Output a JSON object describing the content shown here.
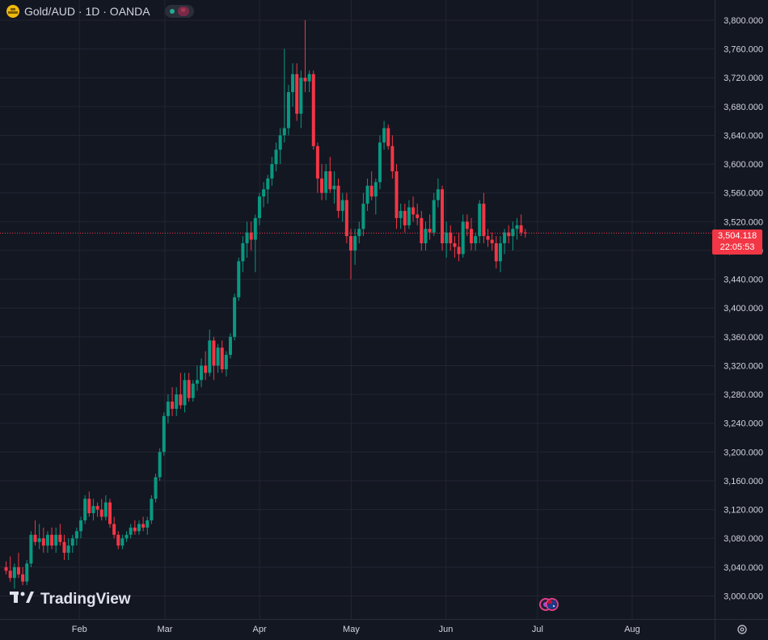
{
  "header": {
    "symbol": "Gold/AUD · 1D · OANDA",
    "symbol_icon": "gold-bars-icon",
    "market_status_icon": "market-open-dot-icon",
    "badge_icon": "equals-badge-icon"
  },
  "watermark": {
    "text": "TradingView",
    "logo_icon": "tradingview-logo-icon"
  },
  "last_price": {
    "price": "3,504.118",
    "countdown": "22:05:53",
    "color": "#f23645"
  },
  "colors": {
    "background": "#131722",
    "grid": "#232632",
    "up": "#089981",
    "down": "#f23645",
    "axis_text": "#d1d4dc"
  },
  "event_icons": [
    "economic-event-icon",
    "australia-flag-icon"
  ],
  "settings_icon": "settings-gear-icon",
  "chart_data": {
    "type": "candlestick",
    "title": "Gold/AUD · 1D · OANDA",
    "y_axis": {
      "ticks": [
        "3,000.000",
        "3,040.000",
        "3,080.000",
        "3,120.000",
        "3,160.000",
        "3,200.000",
        "3,240.000",
        "3,280.000",
        "3,320.000",
        "3,360.000",
        "3,400.000",
        "3,440.000",
        "3,480.000",
        "3,520.000",
        "3,560.000",
        "3,600.000",
        "3,640.000",
        "3,680.000",
        "3,720.000",
        "3,760.000",
        "3,800.000"
      ],
      "tick_values": [
        3000,
        3040,
        3080,
        3120,
        3160,
        3200,
        3240,
        3280,
        3320,
        3360,
        3400,
        3440,
        3480,
        3520,
        3560,
        3600,
        3640,
        3680,
        3720,
        3760,
        3800
      ],
      "range": [
        2968,
        3828
      ],
      "position": "right"
    },
    "x_axis": {
      "labels": [
        "Feb",
        "Mar",
        "Apr",
        "May",
        "Jun",
        "Jul",
        "Aug"
      ],
      "label_days": [
        26,
        54,
        85,
        115,
        146,
        176,
        207
      ],
      "range_days": [
        0,
        234
      ]
    },
    "last_price": 3504.118,
    "grid": true,
    "candles": [
      [
        3040,
        3048,
        3030,
        3035
      ],
      [
        3035,
        3055,
        3020,
        3025
      ],
      [
        3025,
        3045,
        3010,
        3040
      ],
      [
        3040,
        3060,
        3025,
        3030
      ],
      [
        3030,
        3040,
        3015,
        3020
      ],
      [
        3020,
        3050,
        3015,
        3045
      ],
      [
        3045,
        3090,
        3040,
        3085
      ],
      [
        3085,
        3105,
        3070,
        3075
      ],
      [
        3075,
        3100,
        3065,
        3080
      ],
      [
        3080,
        3095,
        3060,
        3070
      ],
      [
        3070,
        3090,
        3060,
        3085
      ],
      [
        3085,
        3095,
        3065,
        3070
      ],
      [
        3070,
        3095,
        3060,
        3085
      ],
      [
        3085,
        3100,
        3070,
        3075
      ],
      [
        3075,
        3085,
        3050,
        3060
      ],
      [
        3060,
        3080,
        3050,
        3070
      ],
      [
        3070,
        3085,
        3060,
        3080
      ],
      [
        3080,
        3095,
        3070,
        3090
      ],
      [
        3090,
        3110,
        3080,
        3105
      ],
      [
        3105,
        3140,
        3100,
        3135
      ],
      [
        3135,
        3145,
        3110,
        3115
      ],
      [
        3115,
        3135,
        3105,
        3125
      ],
      [
        3125,
        3130,
        3110,
        3120
      ],
      [
        3120,
        3135,
        3105,
        3110
      ],
      [
        3110,
        3140,
        3105,
        3130
      ],
      [
        3130,
        3135,
        3095,
        3100
      ],
      [
        3100,
        3110,
        3080,
        3085
      ],
      [
        3085,
        3090,
        3065,
        3070
      ],
      [
        3070,
        3085,
        3065,
        3080
      ],
      [
        3080,
        3090,
        3075,
        3085
      ],
      [
        3085,
        3100,
        3080,
        3095
      ],
      [
        3095,
        3105,
        3085,
        3090
      ],
      [
        3090,
        3105,
        3085,
        3100
      ],
      [
        3100,
        3110,
        3090,
        3095
      ],
      [
        3095,
        3110,
        3085,
        3105
      ],
      [
        3105,
        3140,
        3100,
        3135
      ],
      [
        3135,
        3170,
        3130,
        3165
      ],
      [
        3165,
        3205,
        3160,
        3200
      ],
      [
        3200,
        3255,
        3195,
        3250
      ],
      [
        3250,
        3280,
        3240,
        3270
      ],
      [
        3270,
        3290,
        3250,
        3260
      ],
      [
        3260,
        3290,
        3250,
        3280
      ],
      [
        3280,
        3310,
        3260,
        3265
      ],
      [
        3265,
        3310,
        3255,
        3300
      ],
      [
        3300,
        3310,
        3270,
        3275
      ],
      [
        3275,
        3300,
        3270,
        3295
      ],
      [
        3295,
        3320,
        3285,
        3300
      ],
      [
        3300,
        3330,
        3290,
        3320
      ],
      [
        3320,
        3340,
        3300,
        3310
      ],
      [
        3310,
        3370,
        3305,
        3355
      ],
      [
        3355,
        3360,
        3300,
        3320
      ],
      [
        3320,
        3350,
        3310,
        3345
      ],
      [
        3345,
        3355,
        3310,
        3315
      ],
      [
        3315,
        3340,
        3305,
        3335
      ],
      [
        3335,
        3365,
        3330,
        3360
      ],
      [
        3360,
        3420,
        3355,
        3415
      ],
      [
        3415,
        3470,
        3410,
        3465
      ],
      [
        3465,
        3500,
        3450,
        3490
      ],
      [
        3490,
        3520,
        3470,
        3505
      ],
      [
        3505,
        3520,
        3480,
        3495
      ],
      [
        3495,
        3530,
        3450,
        3525
      ],
      [
        3525,
        3560,
        3515,
        3555
      ],
      [
        3555,
        3575,
        3540,
        3565
      ],
      [
        3565,
        3585,
        3545,
        3580
      ],
      [
        3580,
        3610,
        3570,
        3600
      ],
      [
        3600,
        3630,
        3590,
        3620
      ],
      [
        3620,
        3650,
        3600,
        3640
      ],
      [
        3640,
        3760,
        3630,
        3650
      ],
      [
        3650,
        3710,
        3640,
        3700
      ],
      [
        3700,
        3740,
        3680,
        3725
      ],
      [
        3725,
        3740,
        3660,
        3670
      ],
      [
        3670,
        3730,
        3650,
        3720
      ],
      [
        3720,
        3800,
        3700,
        3715
      ],
      [
        3715,
        3730,
        3700,
        3725
      ],
      [
        3725,
        3730,
        3620,
        3625
      ],
      [
        3625,
        3630,
        3560,
        3580
      ],
      [
        3580,
        3600,
        3550,
        3560
      ],
      [
        3560,
        3600,
        3550,
        3590
      ],
      [
        3590,
        3610,
        3560,
        3565
      ],
      [
        3565,
        3590,
        3545,
        3570
      ],
      [
        3570,
        3580,
        3525,
        3535
      ],
      [
        3535,
        3560,
        3520,
        3550
      ],
      [
        3550,
        3560,
        3490,
        3500
      ],
      [
        3500,
        3510,
        3440,
        3480
      ],
      [
        3480,
        3510,
        3460,
        3500
      ],
      [
        3500,
        3520,
        3490,
        3510
      ],
      [
        3510,
        3560,
        3500,
        3545
      ],
      [
        3545,
        3580,
        3535,
        3570
      ],
      [
        3570,
        3590,
        3550,
        3555
      ],
      [
        3555,
        3580,
        3530,
        3575
      ],
      [
        3575,
        3640,
        3565,
        3630
      ],
      [
        3630,
        3660,
        3620,
        3650
      ],
      [
        3650,
        3655,
        3620,
        3625
      ],
      [
        3625,
        3640,
        3580,
        3590
      ],
      [
        3590,
        3600,
        3510,
        3525
      ],
      [
        3525,
        3545,
        3510,
        3535
      ],
      [
        3535,
        3545,
        3505,
        3515
      ],
      [
        3515,
        3550,
        3510,
        3540
      ],
      [
        3540,
        3555,
        3520,
        3530
      ],
      [
        3530,
        3545,
        3515,
        3525
      ],
      [
        3525,
        3535,
        3480,
        3490
      ],
      [
        3490,
        3520,
        3480,
        3510
      ],
      [
        3510,
        3530,
        3495,
        3505
      ],
      [
        3505,
        3560,
        3500,
        3550
      ],
      [
        3550,
        3580,
        3540,
        3565
      ],
      [
        3565,
        3570,
        3480,
        3490
      ],
      [
        3490,
        3520,
        3470,
        3505
      ],
      [
        3505,
        3515,
        3480,
        3490
      ],
      [
        3490,
        3500,
        3470,
        3485
      ],
      [
        3485,
        3505,
        3465,
        3475
      ],
      [
        3475,
        3530,
        3470,
        3520
      ],
      [
        3520,
        3530,
        3500,
        3510
      ],
      [
        3510,
        3525,
        3480,
        3490
      ],
      [
        3490,
        3505,
        3480,
        3500
      ],
      [
        3500,
        3550,
        3490,
        3545
      ],
      [
        3545,
        3560,
        3490,
        3500
      ],
      [
        3500,
        3510,
        3485,
        3495
      ],
      [
        3495,
        3505,
        3480,
        3490
      ],
      [
        3490,
        3500,
        3455,
        3465
      ],
      [
        3465,
        3500,
        3450,
        3490
      ],
      [
        3490,
        3510,
        3475,
        3505
      ],
      [
        3505,
        3515,
        3490,
        3500
      ],
      [
        3500,
        3520,
        3480,
        3510
      ],
      [
        3510,
        3525,
        3495,
        3515
      ],
      [
        3515,
        3530,
        3500,
        3505
      ],
      [
        3505,
        3510,
        3498,
        3504
      ]
    ]
  }
}
